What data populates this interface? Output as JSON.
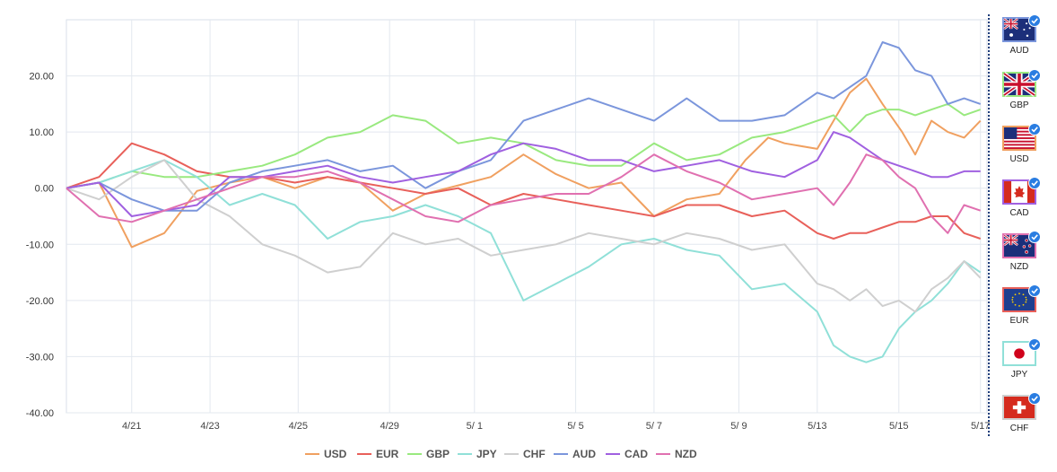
{
  "chart_data": {
    "type": "line",
    "ylim": [
      -40,
      30
    ],
    "yticks": [
      20,
      10,
      0,
      -10,
      -20,
      -30,
      -40
    ],
    "ytick_labels": [
      "20.00",
      "10.00",
      "0.00",
      "-10.00",
      "-20.00",
      "-30.00",
      "-40.00"
    ],
    "xlim": [
      0,
      27
    ],
    "xticks": [
      {
        "x": 2,
        "label": "4/21"
      },
      {
        "x": 4.4,
        "label": "4/23"
      },
      {
        "x": 7.1,
        "label": "4/25"
      },
      {
        "x": 9.9,
        "label": "4/29"
      },
      {
        "x": 12.5,
        "label": "5/ 1"
      },
      {
        "x": 15.6,
        "label": "5/ 5"
      },
      {
        "x": 18,
        "label": "5/ 7"
      },
      {
        "x": 20.6,
        "label": "5/ 9"
      },
      {
        "x": 23,
        "label": "5/13"
      },
      {
        "x": 25.5,
        "label": "5/15"
      },
      {
        "x": 28,
        "label": "5/17"
      }
    ],
    "grid": true,
    "legend": "bottom",
    "series": [
      {
        "name": "USD",
        "color": "#f0a060",
        "points": [
          [
            0,
            0
          ],
          [
            1,
            1
          ],
          [
            2,
            -10.5
          ],
          [
            3,
            -8
          ],
          [
            4,
            -0.5
          ],
          [
            5,
            1
          ],
          [
            6,
            2
          ],
          [
            7,
            0
          ],
          [
            8,
            2
          ],
          [
            9,
            1
          ],
          [
            10,
            -4
          ],
          [
            11,
            -1
          ],
          [
            12,
            0.5
          ],
          [
            13,
            2
          ],
          [
            14,
            6
          ],
          [
            15,
            2.5
          ],
          [
            16,
            0
          ],
          [
            17,
            1
          ],
          [
            18,
            -5
          ],
          [
            19,
            -2
          ],
          [
            20,
            -1
          ],
          [
            20.8,
            5
          ],
          [
            21.5,
            9
          ],
          [
            22,
            8
          ],
          [
            23,
            7
          ],
          [
            23.6,
            13
          ],
          [
            24,
            17
          ],
          [
            24.5,
            19.5
          ],
          [
            25,
            15
          ],
          [
            25.6,
            10
          ],
          [
            26,
            6
          ],
          [
            26.5,
            12
          ],
          [
            27,
            10
          ],
          [
            27.5,
            9
          ],
          [
            28,
            12
          ]
        ]
      },
      {
        "name": "EUR",
        "color": "#e8605a",
        "points": [
          [
            0,
            0
          ],
          [
            1,
            2
          ],
          [
            2,
            8
          ],
          [
            3,
            6
          ],
          [
            4,
            3
          ],
          [
            5,
            2
          ],
          [
            6,
            2
          ],
          [
            7,
            1
          ],
          [
            8,
            2
          ],
          [
            9,
            1
          ],
          [
            10,
            0
          ],
          [
            11,
            -1
          ],
          [
            12,
            0
          ],
          [
            13,
            -3
          ],
          [
            14,
            -1
          ],
          [
            15,
            -2
          ],
          [
            16,
            -3
          ],
          [
            17,
            -4
          ],
          [
            18,
            -5
          ],
          [
            19,
            -3
          ],
          [
            20,
            -3
          ],
          [
            21,
            -5
          ],
          [
            22,
            -4
          ],
          [
            23,
            -8
          ],
          [
            23.5,
            -9
          ],
          [
            24,
            -8
          ],
          [
            24.5,
            -8
          ],
          [
            25,
            -7
          ],
          [
            25.5,
            -6
          ],
          [
            26,
            -6
          ],
          [
            26.5,
            -5
          ],
          [
            27,
            -5
          ],
          [
            27.5,
            -8
          ],
          [
            28,
            -9
          ]
        ]
      },
      {
        "name": "GBP",
        "color": "#99e97f",
        "points": [
          [
            0,
            0
          ],
          [
            1,
            1
          ],
          [
            2,
            3
          ],
          [
            3,
            2
          ],
          [
            4,
            2
          ],
          [
            5,
            3
          ],
          [
            6,
            4
          ],
          [
            7,
            6
          ],
          [
            8,
            9
          ],
          [
            9,
            10
          ],
          [
            10,
            13
          ],
          [
            11,
            12
          ],
          [
            12,
            8
          ],
          [
            13,
            9
          ],
          [
            14,
            8
          ],
          [
            15,
            5
          ],
          [
            16,
            4
          ],
          [
            17,
            4
          ],
          [
            18,
            8
          ],
          [
            19,
            5
          ],
          [
            20,
            6
          ],
          [
            21,
            9
          ],
          [
            22,
            10
          ],
          [
            23,
            12
          ],
          [
            23.5,
            13
          ],
          [
            24,
            10
          ],
          [
            24.5,
            13
          ],
          [
            25,
            14
          ],
          [
            25.5,
            14
          ],
          [
            26,
            13
          ],
          [
            26.5,
            14
          ],
          [
            27,
            15
          ],
          [
            27.5,
            13
          ],
          [
            28,
            14
          ]
        ]
      },
      {
        "name": "JPY",
        "color": "#90e0d8",
        "points": [
          [
            0,
            0
          ],
          [
            1,
            1
          ],
          [
            2,
            3
          ],
          [
            3,
            5
          ],
          [
            4,
            2
          ],
          [
            5,
            -3
          ],
          [
            6,
            -1
          ],
          [
            7,
            -3
          ],
          [
            8,
            -9
          ],
          [
            9,
            -6
          ],
          [
            10,
            -5
          ],
          [
            11,
            -3
          ],
          [
            12,
            -5
          ],
          [
            13,
            -8
          ],
          [
            14,
            -20
          ],
          [
            15,
            -17
          ],
          [
            16,
            -14
          ],
          [
            17,
            -10
          ],
          [
            18,
            -9
          ],
          [
            19,
            -11
          ],
          [
            20,
            -12
          ],
          [
            21,
            -18
          ],
          [
            22,
            -17
          ],
          [
            23,
            -22
          ],
          [
            23.5,
            -28
          ],
          [
            24,
            -30
          ],
          [
            24.5,
            -31
          ],
          [
            25,
            -30
          ],
          [
            25.5,
            -25
          ],
          [
            26,
            -22
          ],
          [
            26.5,
            -20
          ],
          [
            27,
            -17
          ],
          [
            27.5,
            -13
          ],
          [
            28,
            -15
          ]
        ]
      },
      {
        "name": "CHF",
        "color": "#cfcfcf",
        "points": [
          [
            0,
            0
          ],
          [
            1,
            -2
          ],
          [
            2,
            2
          ],
          [
            3,
            5
          ],
          [
            4,
            -2
          ],
          [
            5,
            -5
          ],
          [
            6,
            -10
          ],
          [
            7,
            -12
          ],
          [
            8,
            -15
          ],
          [
            9,
            -14
          ],
          [
            10,
            -8
          ],
          [
            11,
            -10
          ],
          [
            12,
            -9
          ],
          [
            13,
            -12
          ],
          [
            14,
            -11
          ],
          [
            15,
            -10
          ],
          [
            16,
            -8
          ],
          [
            17,
            -9
          ],
          [
            18,
            -10
          ],
          [
            19,
            -8
          ],
          [
            20,
            -9
          ],
          [
            21,
            -11
          ],
          [
            22,
            -10
          ],
          [
            23,
            -17
          ],
          [
            23.5,
            -18
          ],
          [
            24,
            -20
          ],
          [
            24.5,
            -18
          ],
          [
            25,
            -21
          ],
          [
            25.5,
            -20
          ],
          [
            26,
            -22
          ],
          [
            26.5,
            -18
          ],
          [
            27,
            -16
          ],
          [
            27.5,
            -13
          ],
          [
            28,
            -16
          ]
        ]
      },
      {
        "name": "AUD",
        "color": "#7b96dc",
        "points": [
          [
            0,
            0
          ],
          [
            1,
            1
          ],
          [
            2,
            -2
          ],
          [
            3,
            -4
          ],
          [
            4,
            -4
          ],
          [
            5,
            1
          ],
          [
            6,
            3
          ],
          [
            7,
            4
          ],
          [
            8,
            5
          ],
          [
            9,
            3
          ],
          [
            10,
            4
          ],
          [
            11,
            0
          ],
          [
            12,
            3
          ],
          [
            13,
            5
          ],
          [
            14,
            12
          ],
          [
            15,
            14
          ],
          [
            16,
            16
          ],
          [
            17,
            14
          ],
          [
            18,
            12
          ],
          [
            19,
            16
          ],
          [
            20,
            12
          ],
          [
            21,
            12
          ],
          [
            22,
            13
          ],
          [
            23,
            17
          ],
          [
            23.5,
            16
          ],
          [
            24,
            18
          ],
          [
            24.5,
            20
          ],
          [
            25,
            26
          ],
          [
            25.5,
            25
          ],
          [
            26,
            21
          ],
          [
            26.5,
            20
          ],
          [
            27,
            15
          ],
          [
            27.5,
            16
          ],
          [
            28,
            15
          ]
        ]
      },
      {
        "name": "CAD",
        "color": "#a060e0",
        "points": [
          [
            0,
            0
          ],
          [
            1,
            1
          ],
          [
            2,
            -5
          ],
          [
            3,
            -4
          ],
          [
            4,
            -3
          ],
          [
            5,
            2
          ],
          [
            6,
            2
          ],
          [
            7,
            3
          ],
          [
            8,
            4
          ],
          [
            9,
            2
          ],
          [
            10,
            1
          ],
          [
            11,
            2
          ],
          [
            12,
            3
          ],
          [
            13,
            6
          ],
          [
            14,
            8
          ],
          [
            15,
            7
          ],
          [
            16,
            5
          ],
          [
            17,
            5
          ],
          [
            18,
            3
          ],
          [
            19,
            4
          ],
          [
            20,
            5
          ],
          [
            21,
            3
          ],
          [
            22,
            2
          ],
          [
            23,
            5
          ],
          [
            23.5,
            10
          ],
          [
            24,
            9
          ],
          [
            24.5,
            7
          ],
          [
            25,
            5
          ],
          [
            25.5,
            4
          ],
          [
            26,
            3
          ],
          [
            26.5,
            2
          ],
          [
            27,
            2
          ],
          [
            27.5,
            3
          ],
          [
            28,
            3
          ]
        ]
      },
      {
        "name": "NZD",
        "color": "#e070b0",
        "points": [
          [
            0,
            0
          ],
          [
            1,
            -5
          ],
          [
            2,
            -6
          ],
          [
            3,
            -4
          ],
          [
            4,
            -2
          ],
          [
            5,
            0
          ],
          [
            6,
            2
          ],
          [
            7,
            2
          ],
          [
            8,
            3
          ],
          [
            9,
            1
          ],
          [
            10,
            -2
          ],
          [
            11,
            -5
          ],
          [
            12,
            -6
          ],
          [
            13,
            -3
          ],
          [
            14,
            -2
          ],
          [
            15,
            -1
          ],
          [
            16,
            -1
          ],
          [
            17,
            2
          ],
          [
            18,
            6
          ],
          [
            19,
            3
          ],
          [
            20,
            1
          ],
          [
            21,
            -2
          ],
          [
            22,
            -1
          ],
          [
            23,
            0
          ],
          [
            23.5,
            -3
          ],
          [
            24,
            1
          ],
          [
            24.5,
            6
          ],
          [
            25,
            5
          ],
          [
            25.5,
            2
          ],
          [
            26,
            0
          ],
          [
            26.5,
            -5
          ],
          [
            27,
            -8
          ],
          [
            27.5,
            -3
          ],
          [
            28,
            -4
          ]
        ]
      }
    ]
  },
  "sidebar": {
    "items": [
      {
        "code": "AUD",
        "checked": true,
        "icon": "australia-flag-icon"
      },
      {
        "code": "GBP",
        "checked": true,
        "icon": "uk-flag-icon"
      },
      {
        "code": "USD",
        "checked": true,
        "icon": "usa-flag-icon"
      },
      {
        "code": "CAD",
        "checked": true,
        "icon": "canada-flag-icon"
      },
      {
        "code": "NZD",
        "checked": true,
        "icon": "new-zealand-flag-icon"
      },
      {
        "code": "EUR",
        "checked": true,
        "icon": "eu-flag-icon"
      },
      {
        "code": "JPY",
        "checked": true,
        "icon": "japan-flag-icon"
      },
      {
        "code": "CHF",
        "checked": true,
        "icon": "switzerland-flag-icon"
      }
    ]
  }
}
